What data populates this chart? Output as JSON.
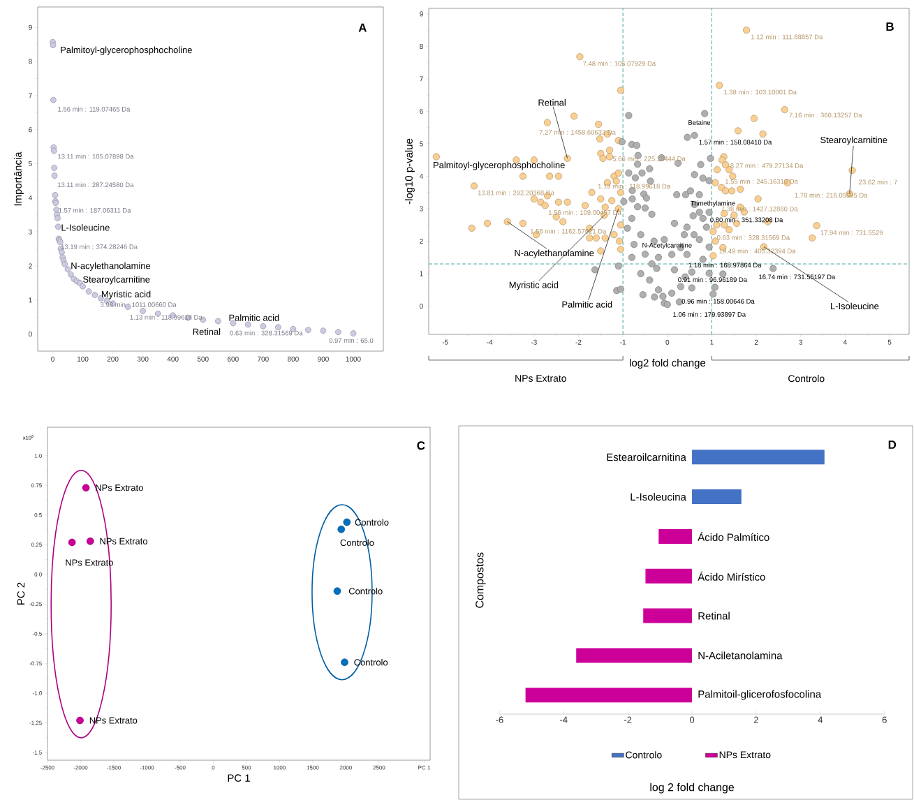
{
  "chart_data": [
    {
      "type": "scatter",
      "ylabel": "Importância",
      "color": "#cbcbe3",
      "marker": "circle",
      "x": [
        0,
        1,
        2,
        3,
        4,
        5,
        6,
        8,
        9,
        10,
        12,
        14,
        16,
        18,
        20,
        22,
        25,
        27,
        30,
        33,
        36,
        40,
        50,
        60,
        70,
        80,
        90,
        100,
        120,
        140,
        160,
        180,
        200,
        250,
        300,
        350,
        400,
        450,
        500,
        550,
        600,
        650,
        700,
        750,
        800,
        850,
        900,
        950,
        1000
      ],
      "values": [
        8.57,
        8.48,
        6.87,
        5.48,
        5.38,
        4.88,
        4.65,
        4.08,
        3.9,
        3.85,
        3.65,
        3.5,
        3.4,
        3.15,
        2.8,
        2.75,
        2.7,
        2.5,
        2.4,
        2.25,
        2.15,
        2.05,
        1.9,
        1.75,
        1.62,
        1.55,
        1.5,
        1.4,
        1.25,
        1.15,
        1.05,
        0.98,
        0.9,
        0.8,
        0.68,
        0.6,
        0.55,
        0.48,
        0.42,
        0.38,
        0.32,
        0.28,
        0.23,
        0.2,
        0.15,
        0.12,
        0.1,
        0.06,
        0.02
      ],
      "xlim": [
        -50,
        1100
      ],
      "xticks": [
        0,
        100,
        200,
        300,
        400,
        500,
        600,
        700,
        800,
        900,
        1000
      ],
      "ylim": [
        -0.5,
        9.6
      ],
      "yticks": [
        0,
        1,
        2,
        3,
        4,
        5,
        6,
        7,
        8,
        9
      ],
      "annotations": [
        "A",
        {
          "text": "Palmitoyl-glycerophosphocholine",
          "x": 1,
          "y": 8.48
        },
        {
          "text": "1.56 min : 119.07465 Da",
          "x": 2,
          "y": 6.87
        },
        {
          "text": "13.11 min : 105.07898 Da",
          "x": 4,
          "y": 5.38
        },
        {
          "text": "13.11 min : 287.24580 Da",
          "x": 6,
          "y": 4.65
        },
        {
          "text": "1.57 min : 187.06311 Da",
          "x": 9,
          "y": 3.9
        },
        {
          "text": "L-Isoleucine",
          "x": 18,
          "y": 3.15
        },
        {
          "text": "13.19 min : 374.28246 Da",
          "x": 22,
          "y": 2.75
        },
        {
          "text": "N-acylethanolamine",
          "x": 50,
          "y": 1.9
        },
        {
          "text": "Stearoylcarnitine",
          "x": 90,
          "y": 1.5
        },
        {
          "text": "Myristic acid",
          "x": 140,
          "y": 1.15
        },
        {
          "text": "3.98 min : 1011.00660 Da",
          "x": 160,
          "y": 1.05
        },
        {
          "text": "1.13 min : 118.99618 Da",
          "x": 300,
          "y": 0.68
        },
        {
          "text": "Palmitic acid",
          "x": 550,
          "y": 0.38
        },
        {
          "text": "Retinal",
          "x": 550,
          "y": 0.38
        },
        {
          "text": "0.63 min : 328.31569 Da",
          "x": 600,
          "y": 0.32
        },
        {
          "text": "0.97 min : 65.0",
          "x": 1000,
          "y": 0.02
        }
      ]
    },
    {
      "type": "scatter",
      "xlabel": "log2 fold change",
      "ylabel": "-log10 p-value",
      "marker": "circle",
      "series": [
        {
          "color": "#fad092",
          "x": [
            -5.2,
            -4.4,
            -4.35,
            -4.05,
            -3.6,
            -3.4,
            -3.25,
            -3.25,
            -3.0,
            -3.0,
            -2.95,
            -2.85,
            -2.75,
            -2.7,
            -2.7,
            -2.65,
            -2.5,
            -2.45,
            -2.45,
            -2.35,
            -2.25,
            -2.25,
            -2.1,
            -1.97,
            -1.85,
            -1.75,
            -1.75,
            -1.7,
            -1.6,
            -1.55,
            -1.52,
            -1.5,
            -1.5,
            -1.5,
            -1.45,
            -1.4,
            -1.42,
            -1.4,
            -1.35,
            -1.35,
            -1.3,
            -1.3,
            -1.25,
            -1.2,
            -1.2,
            -1.15,
            -1.1,
            -1.1,
            -1.1,
            -1.08,
            -1.05,
            -1.05,
            -1.05,
            -1.05,
            1.78,
            1.17,
            2.64,
            1.95,
            1.59,
            2.15,
            1.27,
            1.23,
            1.31,
            1.39,
            1.12,
            1.47,
            1.08,
            1.22,
            1.31,
            1.45,
            1.64,
            2.04,
            2.7,
            4.16,
            4.1,
            1.64,
            1.73,
            1.28,
            1.5,
            2.26,
            3.36,
            1.11,
            1.28,
            1.56,
            1.39,
            1.03,
            3.26,
            1.08,
            2.17,
            1.25,
            1.03
          ],
          "values": [
            4.6,
            2.4,
            3.7,
            2.55,
            2.6,
            4.5,
            4.0,
            2.55,
            4.5,
            3.3,
            2.2,
            3.2,
            3.1,
            5.65,
            3.4,
            4.0,
            2.75,
            4.0,
            3.2,
            2.6,
            4.55,
            3.2,
            5.85,
            7.68,
            3.1,
            2.4,
            2.1,
            3.5,
            2.1,
            5.6,
            5.15,
            4.7,
            3.3,
            1.7,
            4.55,
            3.05,
            2.8,
            2.1,
            5.3,
            3.8,
            4.8,
            4.6,
            3.25,
            4.0,
            2.2,
            3.85,
            5.1,
            4.1,
            3.0,
            2.0,
            6.65,
            3.5,
            2.5,
            1.75,
            8.5,
            6.8,
            6.05,
            5.78,
            5.4,
            5.3,
            4.6,
            4.5,
            4.35,
            4.2,
            4.2,
            4.0,
            3.8,
            3.65,
            3.55,
            3.55,
            3.6,
            3.3,
            3.8,
            4.18,
            3.46,
            3.05,
            2.9,
            2.85,
            2.8,
            2.6,
            2.48,
            2.5,
            2.5,
            2.55,
            2.35,
            2.3,
            2.1,
            2.0,
            1.83,
            1.8,
            1.55
          ]
        },
        {
          "color": "#afafaf",
          "x": [
            -0.87,
            -1.02,
            -0.8,
            -0.69,
            -0.66,
            -0.67,
            -0.87,
            -0.72,
            -0.57,
            -0.4,
            -0.38,
            -0.79,
            -0.53,
            -0.47,
            -0.98,
            -0.79,
            -0.67,
            -0.5,
            -0.35,
            -1.63,
            -1.1,
            -1.14,
            -1.05,
            0.84,
            0.61,
            0.45,
            -0.13,
            0.24,
            0.97,
            0.75,
            0.61,
            0.8,
            0.94,
            0.21,
            0.41,
            0.52,
            0.72,
            0.61,
            0.58,
            0.72,
            0.94,
            0.16,
            0.44,
            0.88,
            -0.07,
            0.38,
            0.72,
            0.94,
            0.1,
            0.44,
            0.8,
            -0.24,
            0.16,
            0.55,
            0.94,
            1.25,
            2.38,
            1.07,
            1.03,
            -0.07,
            -0.29,
            0.27,
            0.55,
            -0.8,
            -0.9,
            -0.6,
            -0.75,
            -0.5,
            -0.8,
            -0.35,
            -0.6,
            -0.4,
            -0.2,
            -0.55,
            0.0,
            -0.1,
            0.3,
            0.4,
            0.1,
            -0.3,
            0.3,
            0.6,
            0.8,
            -0.2
          ],
          "values": [
            5.87,
            5.06,
            4.98,
            4.95,
            4.64,
            4.37,
            4.1,
            3.95,
            4.1,
            4.23,
            3.85,
            3.56,
            3.45,
            3.33,
            3.22,
            3.3,
            3.06,
            3.02,
            2.83,
            1.12,
            1.23,
            0.48,
            0.52,
            5.93,
            5.26,
            5.2,
            4.57,
            4.4,
            4.55,
            4.36,
            4.05,
            3.94,
            3.86,
            3.43,
            3.43,
            3.55,
            3.43,
            3.13,
            2.78,
            2.89,
            2.89,
            2.55,
            2.43,
            2.43,
            2.05,
            2.2,
            2.05,
            1.82,
            1.59,
            1.59,
            1.44,
            1.16,
            1.12,
            1.05,
            1.01,
            0.99,
            1.16,
            0.58,
            0.37,
            0.09,
            0.28,
            0.13,
            0.56,
            2.7,
            2.4,
            2.2,
            1.9,
            1.6,
            1.5,
            1.3,
            1.0,
            0.8,
            0.5,
            0.35,
            0.05,
            0.3,
            0.6,
            0.9,
            0.4,
            2.0,
            1.8,
            2.2,
            2.7,
            1.5
          ]
        }
      ],
      "xlim": [
        -5.37,
        5.44
      ],
      "xticks": [
        -5,
        -4,
        -3,
        -2,
        -1,
        0,
        1,
        2,
        3,
        4,
        5
      ],
      "ylim": [
        -0.87,
        9.17
      ],
      "yticks": [
        0,
        1,
        2,
        3,
        4,
        5,
        6,
        7,
        8,
        9
      ],
      "ref_lines": [
        {
          "axis": "x",
          "value": -1,
          "color": "#2a9d9a",
          "line_style": "dashed"
        },
        {
          "axis": "x",
          "value": 1,
          "color": "#2a9d9a",
          "line_style": "dashed"
        },
        {
          "axis": "y",
          "value": 1.3,
          "color": "#2a9d9a",
          "line_style": "dashed"
        }
      ],
      "annotations": [
        "B",
        "NPs Extrato",
        "Controlo",
        {
          "text": "1.12 min : 111.88857 Da",
          "x": 1.78,
          "y": 8.5
        },
        {
          "text": "7.48 min : 105.07929 Da",
          "x": -1.97,
          "y": 7.68
        },
        {
          "text": "1.38 min : 103.10001 Da",
          "x": 1.17,
          "y": 6.8
        },
        {
          "text": "7.16 min : 360.13257 Da",
          "x": 2.64,
          "y": 6.05
        },
        {
          "text": "Retinal",
          "x": -2.25,
          "y": 4.55
        },
        {
          "text": "7.27 min : 1458.60632 Da",
          "x": -2.7,
          "y": 5.65
        },
        {
          "text": "Betaine",
          "x": 0.84,
          "y": 5.93
        },
        {
          "text": "1.57 min : 158.08410 Da",
          "x": 0.61,
          "y": 5.26
        },
        {
          "text": "Stearoylcarnitine",
          "x": 4.1,
          "y": 3.46
        },
        {
          "text": "Palmitoyl-glycerophosphocholine",
          "x": -5.2,
          "y": 4.6
        },
        {
          "text": "5.66 min : 225.13444 Da",
          "x": -1.3,
          "y": 4.8
        },
        {
          "text": "8.27 min : 479.27134 Da",
          "x": 1.27,
          "y": 4.6
        },
        {
          "text": "1.55 min : 245.16310 Da",
          "x": 1.12,
          "y": 4.2
        },
        {
          "text": "23.62 min : 7",
          "x": 4.16,
          "y": 4.18
        },
        {
          "text": "1.78 min : 216.05595 Da",
          "x": 4.1,
          "y": 3.46
        },
        {
          "text": "1.13 min : 118.99618 Da",
          "x": -1.05,
          "y": 3.5
        },
        {
          "text": "13.81 min : 292.20368 Da",
          "x": -4.35,
          "y": 3.7
        },
        {
          "text": "Trimethylamine",
          "x": 0.72,
          "y": 3.43
        },
        {
          "text": "7.38 min : 1427.12880 Da",
          "x": 2.04,
          "y": 3.3
        },
        {
          "text": "0.80 min : 351.33208 Da",
          "x": 0.94,
          "y": 2.89
        },
        {
          "text": "1.56 min : 109.00497 Da",
          "x": -1.85,
          "y": 3.1
        },
        {
          "text": "0.63 min : 328.31569 Da",
          "x": 1.11,
          "y": 2.5
        },
        {
          "text": "17.94 min : 731.5529",
          "x": 3.36,
          "y": 2.48
        },
        {
          "text": "1.56 min : 1162.57621 Da",
          "x": -2.95,
          "y": 2.2
        },
        {
          "text": "N-acylethanolamine",
          "x": -3.6,
          "y": 2.6
        },
        {
          "text": "N-Acetylcarnitine",
          "x": -0.07,
          "y": 2.05
        },
        {
          "text": "19.49 min : 405.32394 Da",
          "x": 1.08,
          "y": 2.0
        },
        {
          "text": "1.18 min : 168.97864 Da",
          "x": 0.55,
          "y": 1.05
        },
        {
          "text": "16.74 min : 731.55197 Da",
          "x": 2.38,
          "y": 1.16
        },
        {
          "text": "0.91 min : 96.96189 Da",
          "x": 0.94,
          "y": 1.01
        },
        {
          "text": "Myristic acid",
          "x": -1.42,
          "y": 2.8
        },
        {
          "text": "Palmitic acid",
          "x": -1.1,
          "y": 3.0
        },
        {
          "text": "L-Isoleucine",
          "x": 2.17,
          "y": 1.83
        },
        {
          "text": "0.96 min : 158.00646 Da",
          "x": 0.27,
          "y": 0.13
        },
        {
          "text": "1.06 min : 179.93897 Da",
          "x": -0.07,
          "y": 0.09
        }
      ]
    },
    {
      "type": "scatter",
      "xlabel": "PC 1",
      "ylabel": "PC 2",
      "marker": "circle",
      "series": [
        {
          "color": "#cc0099",
          "x": [
            -1920,
            -2130,
            -1855,
            -2010
          ],
          "values": [
            0.73,
            0.27,
            0.28,
            -1.23
          ]
        },
        {
          "color": "#0070c0",
          "x": [
            2015,
            1930,
            1870,
            1980
          ],
          "values": [
            0.44,
            0.38,
            -0.14,
            -0.74
          ]
        }
      ],
      "xlim": [
        -2500,
        3270
      ],
      "xticks": [
        -2500,
        -2000,
        -1500,
        -1000,
        -500,
        0,
        500,
        1000,
        1500,
        2000,
        2500,
        {
          "value": 3180,
          "label": "PC 1"
        }
      ],
      "ylim": [
        -1.565,
        1.24
      ],
      "yticks": [
        {
          "value": 1,
          "label": "1.0"
        },
        0.75,
        0.5,
        0.25,
        {
          "value": 0,
          "label": "0.0"
        },
        -0.25,
        -0.5,
        -0.75,
        {
          "value": -1,
          "label": "-1.0"
        },
        -1.25,
        -1.5
      ],
      "annotations": [
        "C",
        "x10$^{3}$",
        {
          "text": "NPs Extrato",
          "x": -1920,
          "y": 0.73
        },
        {
          "text": "NPs Extrato",
          "x": -2130,
          "y": 0.27
        },
        {
          "text": "NPs Extrato",
          "x": -1855,
          "y": 0.28
        },
        {
          "text": "NPs Extrato",
          "x": -2010,
          "y": -1.23
        },
        {
          "text": "Controlo",
          "x": 2015,
          "y": 0.44
        },
        {
          "text": "Controlo",
          "x": 1930,
          "y": 0.38
        },
        {
          "text": "Controlo",
          "x": 1870,
          "y": -0.14
        },
        {
          "text": "Controlo",
          "x": 1980,
          "y": -0.74
        }
      ]
    },
    {
      "type": "bar",
      "orientation": "horizontal",
      "xlabel": "log 2 fold change",
      "ylabel": "Compostos",
      "legend": "bottom",
      "categories": [
        "Estearoilcarnitina",
        "L-Isoleucina",
        "Ácido Palmítico",
        "Ácido Mirístico",
        "Retinal",
        "N-Aciletanolamina",
        "Palmitoil-glicerofosfocolina"
      ],
      "series": [
        {
          "name": "Controlo",
          "color": "#4472c4",
          "values": [
            4.13,
            1.54,
            null,
            null,
            null,
            null,
            null
          ]
        },
        {
          "name": "NPs Extrato",
          "color": "#cc0099",
          "values": [
            null,
            null,
            -1.04,
            -1.45,
            -1.52,
            -3.61,
            -5.19
          ]
        }
      ],
      "xlim": [
        -6,
        6
      ],
      "xticks": [
        -6,
        -4,
        -2,
        0,
        2,
        4,
        6
      ],
      "annotations": [
        "D"
      ]
    }
  ]
}
